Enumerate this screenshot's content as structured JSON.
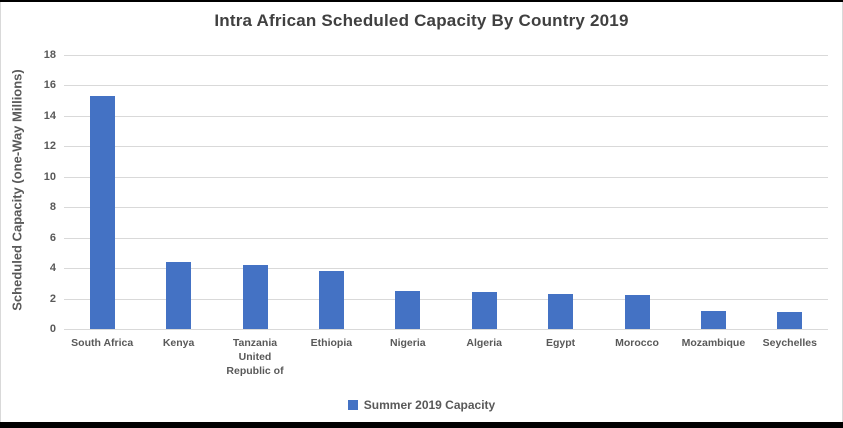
{
  "chart_data": {
    "type": "bar",
    "title": "Intra African Scheduled Capacity By Country 2019",
    "xlabel": "",
    "ylabel": "Scheduled Capacity (one-Way Millions)",
    "categories": [
      "South Africa",
      "Kenya",
      "Tanzania\nUnited\nRepublic of",
      "Ethiopia",
      "Nigeria",
      "Algeria",
      "Egypt",
      "Morocco",
      "Mozambique",
      "Seychelles"
    ],
    "series": [
      {
        "name": "Summer 2019 Capacity",
        "values": [
          15.3,
          4.4,
          4.2,
          3.8,
          2.5,
          2.4,
          2.3,
          2.25,
          1.2,
          1.1
        ]
      }
    ],
    "ylim": [
      0,
      18
    ],
    "yticks": [
      0,
      2,
      4,
      6,
      8,
      10,
      12,
      14,
      16,
      18
    ],
    "grid": true,
    "legend_position": "bottom",
    "colors": {
      "bar": "#4472C4",
      "grid": "#D9D9D9",
      "axis_text": "#595959",
      "title_text": "#404040",
      "background": "#FFFFFF",
      "frame": "#000000"
    }
  }
}
